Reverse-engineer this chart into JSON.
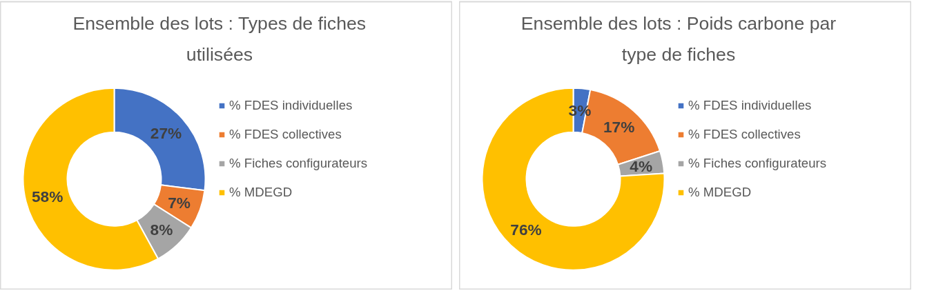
{
  "chart_data": [
    {
      "type": "donut",
      "title": "Ensemble des lots : Types de fiches utilisées",
      "categories": [
        "% FDES individuelles",
        "% FDES collectives",
        "% Fiches configurateurs",
        "% MDEGD"
      ],
      "values": [
        27,
        7,
        8,
        58
      ],
      "colors": [
        "#4472c4",
        "#ed7d31",
        "#a5a5a5",
        "#ffc000"
      ],
      "value_labels": [
        "27%",
        "7%",
        "8%",
        "58%"
      ],
      "legend": "right"
    },
    {
      "type": "donut",
      "title": "Ensemble des lots : Poids carbone par type de fiches",
      "categories": [
        "% FDES individuelles",
        "% FDES collectives",
        "% Fiches configurateurs",
        "% MDEGD"
      ],
      "values": [
        3,
        17,
        4,
        76
      ],
      "colors": [
        "#4472c4",
        "#ed7d31",
        "#a5a5a5",
        "#ffc000"
      ],
      "value_labels": [
        "3%",
        "17%",
        "4%",
        "76%"
      ],
      "legend": "right"
    }
  ]
}
